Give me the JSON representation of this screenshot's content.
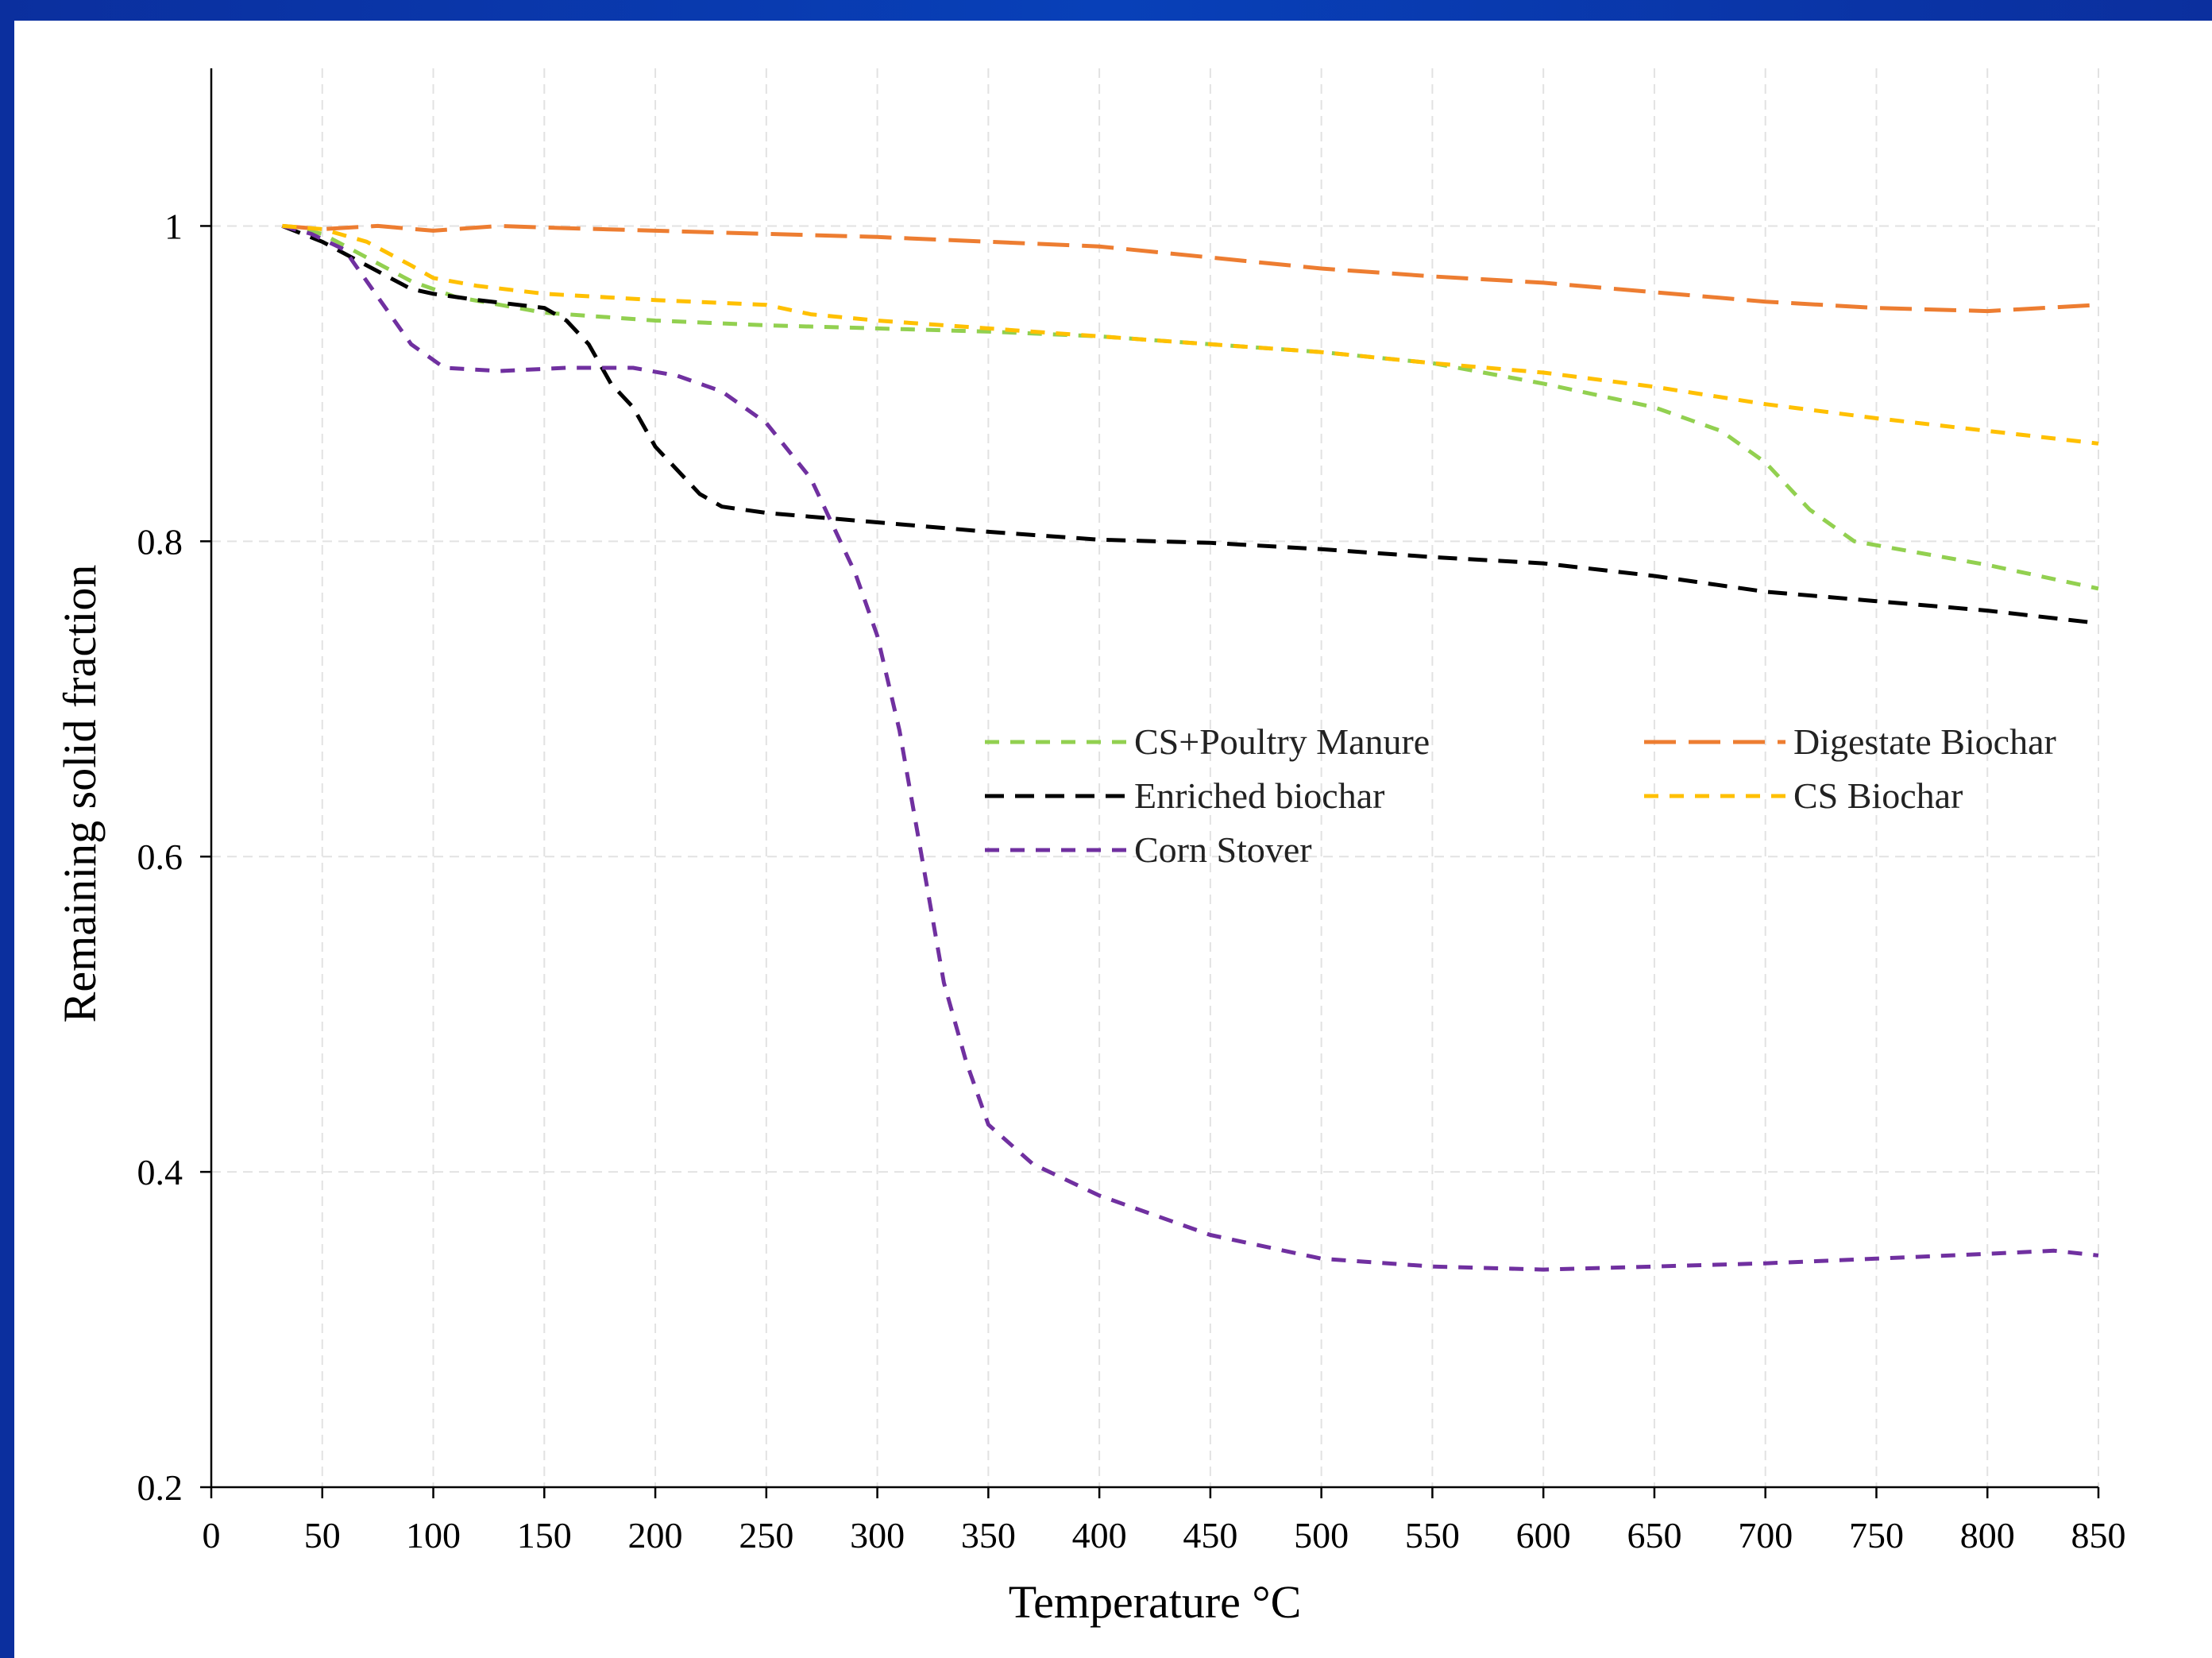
{
  "chart_data": {
    "type": "line",
    "title": "",
    "xlabel": "Temperature °C",
    "ylabel": "Remaining solid fraction",
    "xlim": [
      0,
      850
    ],
    "ylim": [
      0.2,
      1.1
    ],
    "xticks": [
      0,
      50,
      100,
      150,
      200,
      250,
      300,
      350,
      400,
      450,
      500,
      550,
      600,
      650,
      700,
      750,
      800,
      850
    ],
    "xtick_labels": [
      "0",
      "50",
      "100",
      "150",
      "200",
      "250",
      "300",
      "350",
      "400",
      "450",
      "500",
      "550",
      "600",
      "650",
      "700",
      "750",
      "800",
      "850"
    ],
    "yticks": [
      0.2,
      0.4,
      0.6,
      0.8,
      1.0
    ],
    "ytick_labels": [
      "0.2",
      "0.4",
      "0.6",
      "0.8",
      "1"
    ],
    "grid": true,
    "legend_position": "center-right",
    "series": [
      {
        "name": "CS+Poultry Manure",
        "color": "#92d050",
        "dash": "short",
        "x": [
          32,
          50,
          70,
          90,
          110,
          130,
          150,
          200,
          250,
          300,
          350,
          400,
          450,
          500,
          550,
          600,
          650,
          680,
          700,
          720,
          740,
          760,
          800,
          850
        ],
        "y": [
          1.0,
          0.995,
          0.98,
          0.965,
          0.955,
          0.95,
          0.945,
          0.94,
          0.937,
          0.935,
          0.933,
          0.93,
          0.925,
          0.92,
          0.913,
          0.9,
          0.885,
          0.87,
          0.85,
          0.82,
          0.8,
          0.795,
          0.785,
          0.77
        ]
      },
      {
        "name": "Enriched biochar",
        "color": "#000000",
        "dash": "medium",
        "x": [
          32,
          50,
          70,
          90,
          100,
          120,
          150,
          160,
          170,
          180,
          190,
          200,
          210,
          220,
          230,
          250,
          300,
          350,
          400,
          450,
          500,
          550,
          600,
          650,
          700,
          750,
          800,
          850
        ],
        "y": [
          1.0,
          0.99,
          0.975,
          0.96,
          0.957,
          0.953,
          0.948,
          0.94,
          0.925,
          0.9,
          0.885,
          0.86,
          0.845,
          0.83,
          0.822,
          0.818,
          0.812,
          0.806,
          0.801,
          0.799,
          0.795,
          0.79,
          0.786,
          0.778,
          0.768,
          0.762,
          0.756,
          0.748
        ]
      },
      {
        "name": "Corn Stover",
        "color": "#7030a0",
        "dash": "short",
        "x": [
          32,
          45,
          60,
          75,
          90,
          105,
          130,
          160,
          190,
          210,
          230,
          250,
          270,
          280,
          290,
          300,
          310,
          320,
          330,
          340,
          350,
          370,
          400,
          450,
          500,
          550,
          600,
          650,
          700,
          750,
          800,
          830,
          850
        ],
        "y": [
          1.0,
          0.995,
          0.985,
          0.955,
          0.925,
          0.91,
          0.908,
          0.91,
          0.91,
          0.905,
          0.895,
          0.875,
          0.84,
          0.81,
          0.78,
          0.74,
          0.68,
          0.6,
          0.52,
          0.47,
          0.43,
          0.405,
          0.385,
          0.36,
          0.345,
          0.34,
          0.338,
          0.34,
          0.342,
          0.345,
          0.348,
          0.35,
          0.347
        ]
      },
      {
        "name": "Digestate Biochar",
        "color": "#ed7d31",
        "dash": "long",
        "x": [
          32,
          50,
          75,
          100,
          130,
          150,
          200,
          250,
          300,
          350,
          400,
          450,
          500,
          550,
          600,
          650,
          700,
          750,
          800,
          850
        ],
        "y": [
          1.0,
          0.998,
          1.0,
          0.997,
          1.0,
          0.999,
          0.997,
          0.995,
          0.993,
          0.99,
          0.987,
          0.98,
          0.973,
          0.968,
          0.964,
          0.958,
          0.952,
          0.948,
          0.946,
          0.95
        ]
      },
      {
        "name": "CS Biochar",
        "color": "#ffc000",
        "dash": "short",
        "x": [
          32,
          50,
          70,
          90,
          100,
          120,
          150,
          200,
          250,
          270,
          300,
          350,
          400,
          450,
          500,
          550,
          600,
          650,
          700,
          750,
          800,
          850
        ],
        "y": [
          1.0,
          0.998,
          0.99,
          0.975,
          0.967,
          0.962,
          0.957,
          0.953,
          0.95,
          0.944,
          0.94,
          0.935,
          0.93,
          0.925,
          0.92,
          0.913,
          0.907,
          0.898,
          0.887,
          0.878,
          0.87,
          0.862
        ]
      }
    ]
  }
}
